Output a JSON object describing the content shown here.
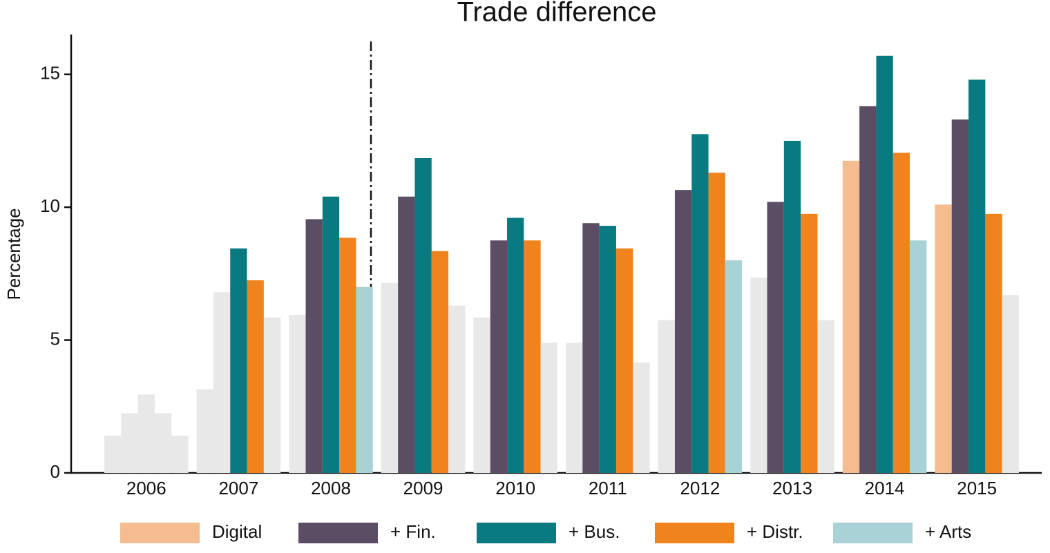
{
  "chart_data": {
    "type": "bar",
    "title": "Trade difference",
    "y_label": "Percentage",
    "categories": [
      "2006",
      "2007",
      "2008",
      "2009",
      "2010",
      "2011",
      "2012",
      "2013",
      "2014",
      "2015"
    ],
    "series": [
      {
        "name": "Digital",
        "color": "#f5bd8f",
        "values": [
          1.4,
          3.15,
          5.95,
          7.15,
          5.85,
          4.9,
          5.75,
          7.35,
          11.75,
          10.1
        ],
        "colors": [
          "#e8e8e8",
          "#e8e8e8",
          "#e8e8e8",
          "#e8e8e8",
          "#e8e8e8",
          "#e8e8e8",
          "#e8e8e8",
          "#e8e8e8",
          "#f5bd8f",
          "#f5bd8f"
        ]
      },
      {
        "name": "+ Fin.",
        "color": "#5a4d64",
        "values": [
          2.25,
          6.8,
          9.55,
          10.4,
          8.75,
          9.4,
          10.65,
          10.2,
          13.8,
          13.3
        ],
        "colors": [
          "#e8e8e8",
          "#e8e8e8",
          "#5a4d64",
          "#5a4d64",
          "#5a4d64",
          "#5a4d64",
          "#5a4d64",
          "#5a4d64",
          "#5a4d64",
          "#5a4d64"
        ]
      },
      {
        "name": "+ Bus.",
        "color": "#087a80",
        "values": [
          2.95,
          8.45,
          10.4,
          11.85,
          9.6,
          9.3,
          12.75,
          12.5,
          15.7,
          14.8
        ],
        "colors": [
          "#e8e8e8",
          "#087a80",
          "#087a80",
          "#087a80",
          "#087a80",
          "#087a80",
          "#087a80",
          "#087a80",
          "#087a80",
          "#087a80"
        ]
      },
      {
        "name": "+ Distr.",
        "color": "#ef841f",
        "values": [
          2.25,
          7.25,
          8.85,
          8.35,
          8.75,
          8.45,
          11.3,
          9.75,
          12.05,
          9.75
        ],
        "colors": [
          "#e8e8e8",
          "#ef841f",
          "#ef841f",
          "#ef841f",
          "#ef841f",
          "#ef841f",
          "#ef841f",
          "#ef841f",
          "#ef841f",
          "#ef841f"
        ]
      },
      {
        "name": "+ Arts",
        "color": "#a8d2d5",
        "values": [
          1.4,
          5.85,
          7.0,
          6.3,
          4.9,
          4.15,
          8.0,
          5.75,
          8.75,
          6.7
        ],
        "colors": [
          "#e8e8e8",
          "#e8e8e8",
          "#a8d2d5",
          "#e8e8e8",
          "#e8e8e8",
          "#e8e8e8",
          "#a8d2d5",
          "#e8e8e8",
          "#a8d2d5",
          "#e8e8e8"
        ]
      }
    ],
    "ylim": [
      0,
      16.5
    ],
    "yticks": [
      0,
      5,
      10,
      15
    ],
    "grid": false,
    "legend": "bottom"
  }
}
